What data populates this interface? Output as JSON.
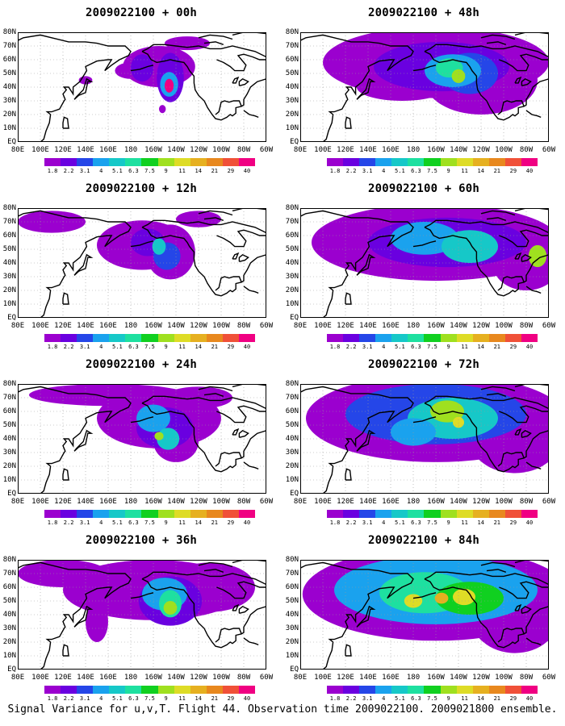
{
  "caption": "Signal Variance for u,v,T. Flight 44. Observation time 2009022100. 2009021800 ensemble.",
  "lat_labels": [
    "80N",
    "70N",
    "60N",
    "50N",
    "40N",
    "30N",
    "20N",
    "10N",
    "EQ"
  ],
  "lon_labels": [
    "80E",
    "100E",
    "120E",
    "140E",
    "160E",
    "180",
    "160W",
    "140W",
    "120W",
    "100W",
    "80W",
    "60W"
  ],
  "colorbar": {
    "labels": [
      "1.8",
      "2.2",
      "3.1",
      "4",
      "5.1",
      "6.3",
      "7.5",
      "9",
      "11",
      "14",
      "21",
      "29",
      "40"
    ],
    "colors": [
      "#9b00cf",
      "#6a00e0",
      "#2546e8",
      "#1aa2ee",
      "#16c8c8",
      "#1ee0a0",
      "#10d020",
      "#9fe01f",
      "#dedc26",
      "#e6b020",
      "#e8881e",
      "#f05038",
      "#f00082"
    ]
  },
  "panels": [
    {
      "title": "2009022100 + 00h",
      "level": 0
    },
    {
      "title": "2009022100 + 48h",
      "level": 4
    },
    {
      "title": "2009022100 + 12h",
      "level": 1
    },
    {
      "title": "2009022100 + 60h",
      "level": 5
    },
    {
      "title": "2009022100 + 24h",
      "level": 2
    },
    {
      "title": "2009022100 + 72h",
      "level": 6
    },
    {
      "title": "2009022100 + 36h",
      "level": 3
    },
    {
      "title": "2009022100 + 84h",
      "level": 7
    }
  ]
}
